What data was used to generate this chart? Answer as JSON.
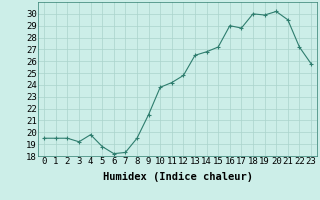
{
  "x": [
    0,
    1,
    2,
    3,
    4,
    5,
    6,
    7,
    8,
    9,
    10,
    11,
    12,
    13,
    14,
    15,
    16,
    17,
    18,
    19,
    20,
    21,
    22,
    23
  ],
  "y": [
    19.5,
    19.5,
    19.5,
    19.2,
    19.8,
    18.8,
    18.2,
    18.3,
    19.5,
    21.5,
    23.8,
    24.2,
    24.8,
    26.5,
    26.8,
    27.2,
    29.0,
    28.8,
    30.0,
    29.9,
    30.2,
    29.5,
    27.2,
    25.8
  ],
  "xlabel": "Humidex (Indice chaleur)",
  "ylim": [
    18,
    31
  ],
  "xlim": [
    -0.5,
    23.5
  ],
  "yticks": [
    18,
    19,
    20,
    21,
    22,
    23,
    24,
    25,
    26,
    27,
    28,
    29,
    30
  ],
  "xticks": [
    0,
    1,
    2,
    3,
    4,
    5,
    6,
    7,
    8,
    9,
    10,
    11,
    12,
    13,
    14,
    15,
    16,
    17,
    18,
    19,
    20,
    21,
    22,
    23
  ],
  "line_color": "#2e7d6e",
  "marker": "+",
  "bg_color": "#cceee8",
  "grid_color": "#aad4cc",
  "xlabel_fontsize": 7.5,
  "tick_fontsize": 6.5
}
